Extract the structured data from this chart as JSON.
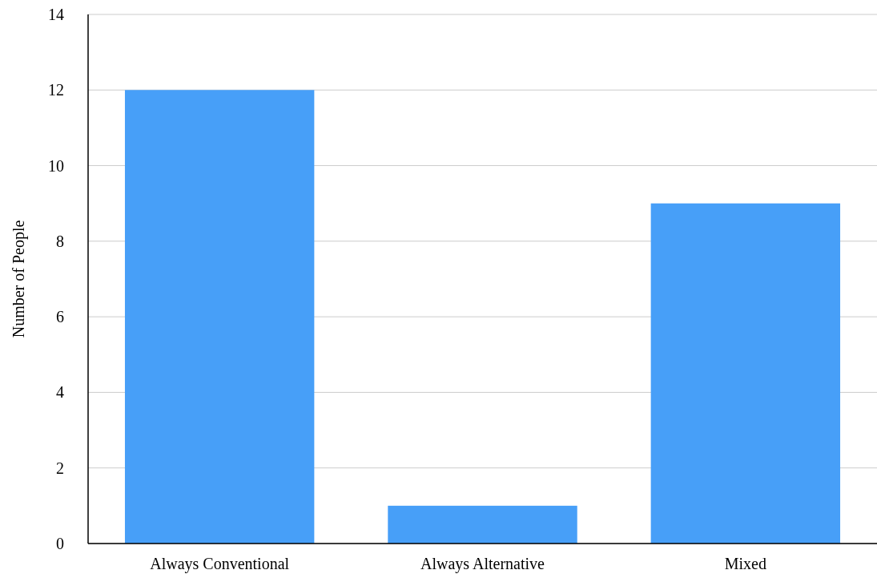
{
  "chart_data": {
    "type": "bar",
    "ylabel": "Number of People",
    "categories": [
      "Always Conventional",
      "Always Alternative",
      "Mixed"
    ],
    "values": [
      12,
      1,
      9
    ],
    "color": "#479ff8",
    "ylim": [
      0,
      14
    ],
    "yticks": [
      0,
      2,
      4,
      6,
      8,
      10,
      12,
      14
    ],
    "grid": "y"
  }
}
